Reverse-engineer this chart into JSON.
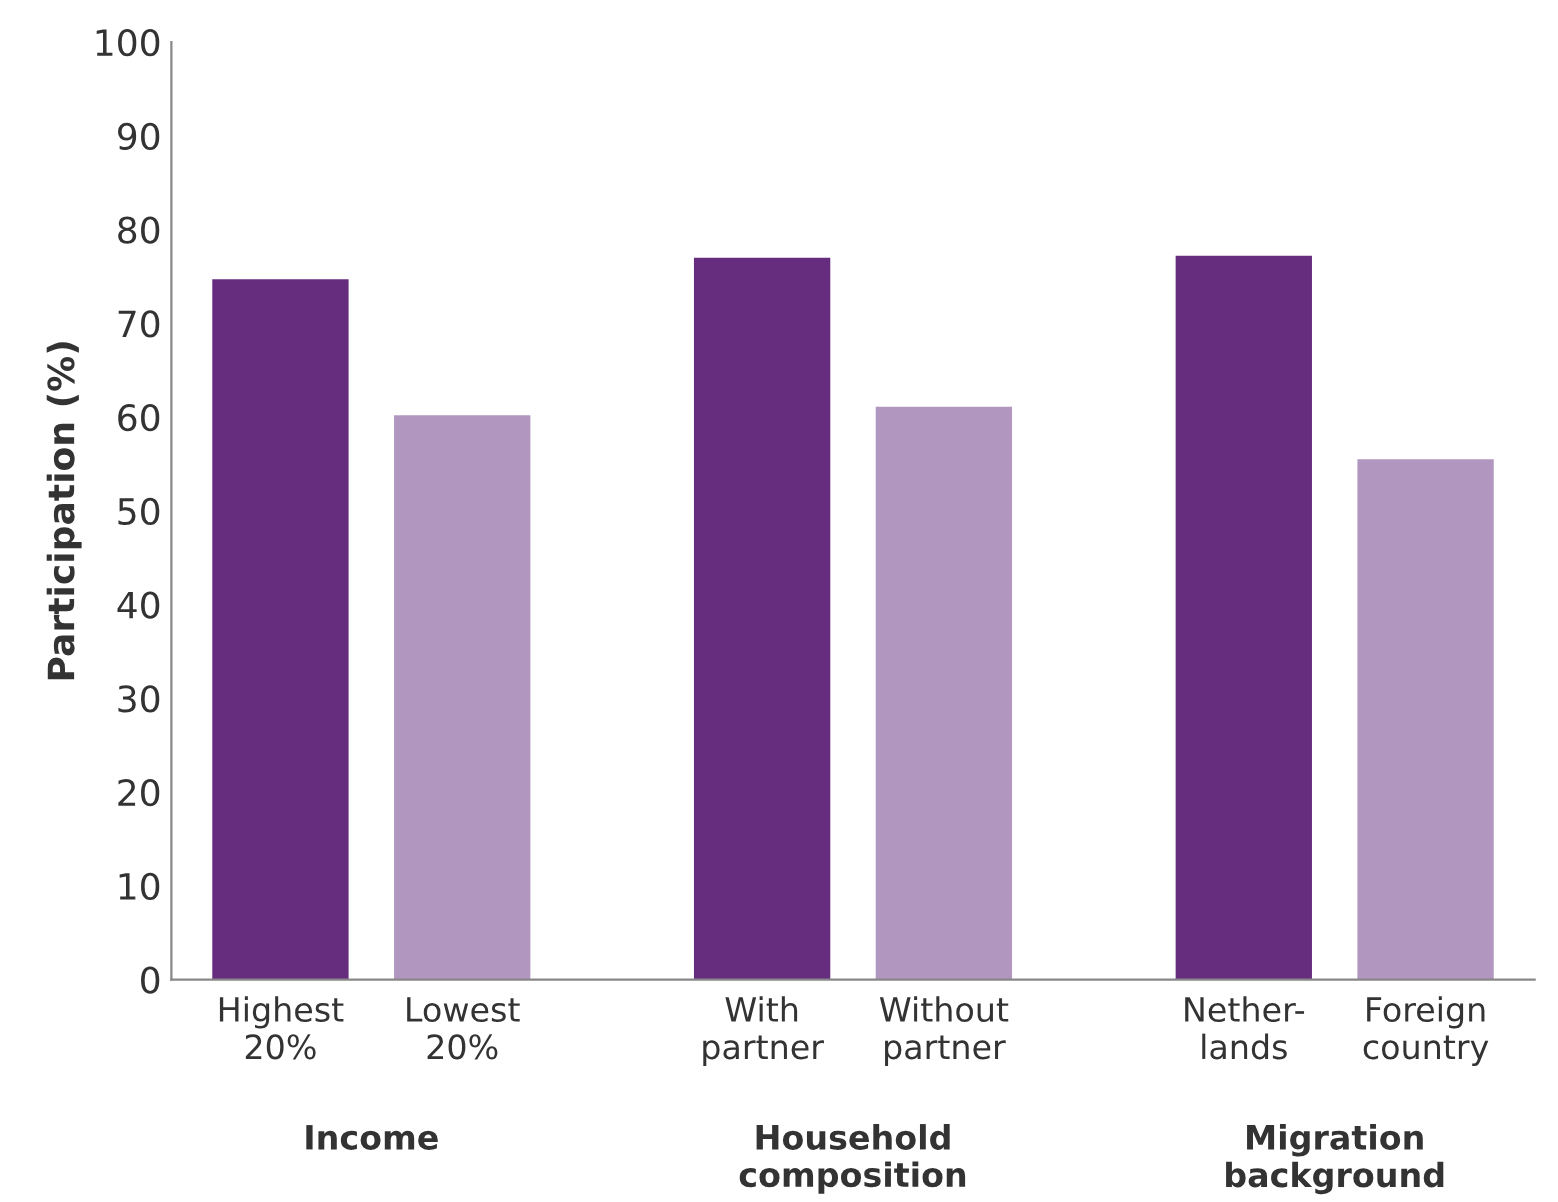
{
  "chart_data": {
    "type": "bar",
    "ylabel": "Participation (%)",
    "categories": [
      "Highest\n20%",
      "Lowest\n20%",
      "With\npartner",
      "Without\npartner",
      "Nether-\nlands",
      "Foreign\ncountry"
    ],
    "values": [
      74.7,
      60.2,
      77.0,
      61.1,
      77.2,
      55.5
    ],
    "colors": [
      "#662d7f",
      "#b197c0",
      "#662d7f",
      "#b197c0",
      "#662d7f",
      "#b197c0"
    ],
    "annotations": [
      "Income",
      "Household\ncomposition",
      "Migration\nbackground"
    ],
    "ylim": [
      0,
      100
    ],
    "yticks": [
      0,
      10,
      20,
      30,
      40,
      50,
      60,
      70,
      80,
      90,
      100
    ],
    "grid": false,
    "legend": false
  }
}
